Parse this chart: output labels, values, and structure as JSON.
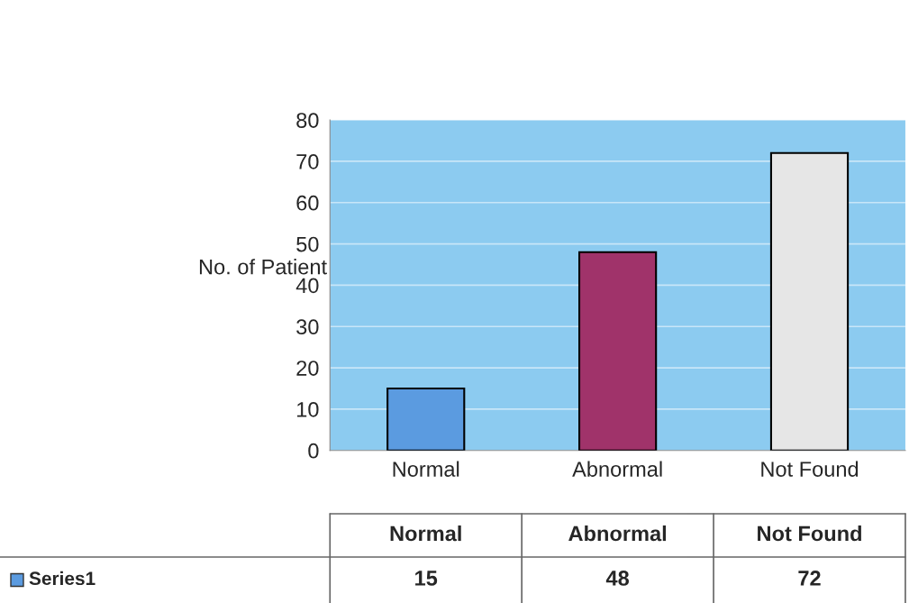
{
  "chart_data": {
    "type": "bar",
    "ylabel": "No. of Patient",
    "categories": [
      "Normal",
      "Abnormal",
      "Not Found"
    ],
    "series": [
      {
        "name": "Series1",
        "color": "#5b9be0",
        "colors": [
          "#5b9be0",
          "#a0336a",
          "#e6e6e6"
        ],
        "values": [
          15,
          48,
          72
        ],
        "value_labels": [
          "15",
          "48",
          "72"
        ]
      }
    ],
    "ylim": [
      0,
      80
    ],
    "yticks": [
      0,
      10,
      20,
      30,
      40,
      50,
      60,
      70,
      80
    ],
    "grid": "y",
    "legend": "bottom left"
  }
}
